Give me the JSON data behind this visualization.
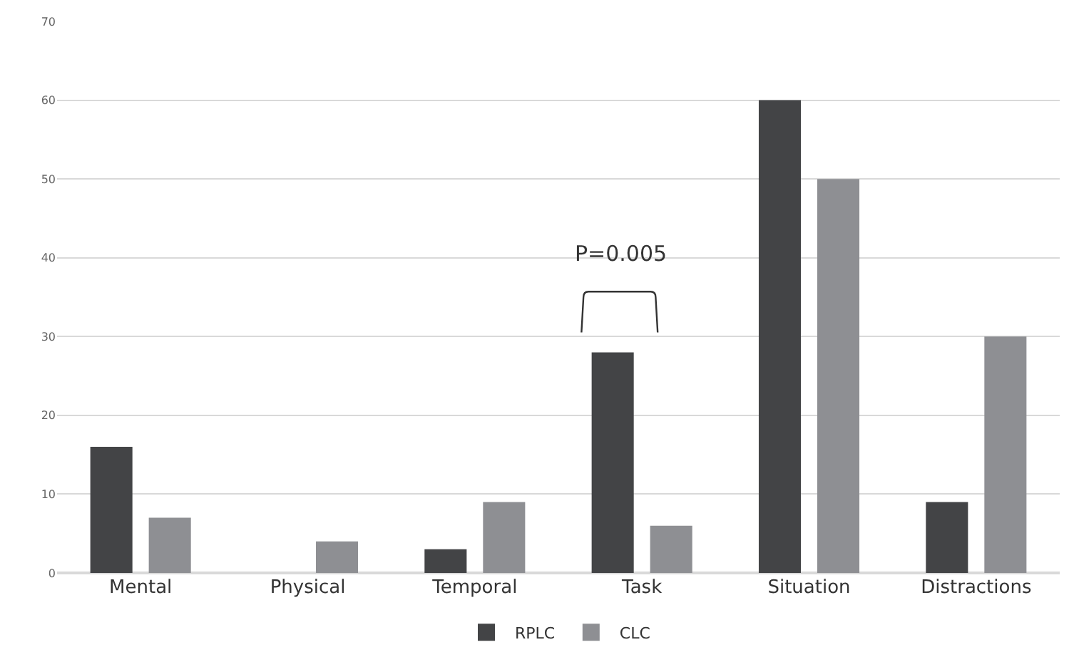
{
  "chart_data": {
    "type": "bar",
    "categories": [
      "Mental",
      "Physical",
      "Temporal",
      "Task",
      "Situation",
      "Distractions"
    ],
    "series": [
      {
        "name": "RPLC",
        "color": "#434446",
        "values": [
          16,
          0,
          3,
          28,
          60,
          9
        ]
      },
      {
        "name": "CLC",
        "color": "#8e8f93",
        "values": [
          7,
          4,
          9,
          6,
          50,
          30
        ]
      }
    ],
    "ylim": [
      0,
      70
    ],
    "yticks": [
      0,
      10,
      20,
      30,
      40,
      50,
      60,
      70
    ],
    "grid": "y",
    "legend": "bottom",
    "annotations": [
      "P=0.005"
    ]
  }
}
